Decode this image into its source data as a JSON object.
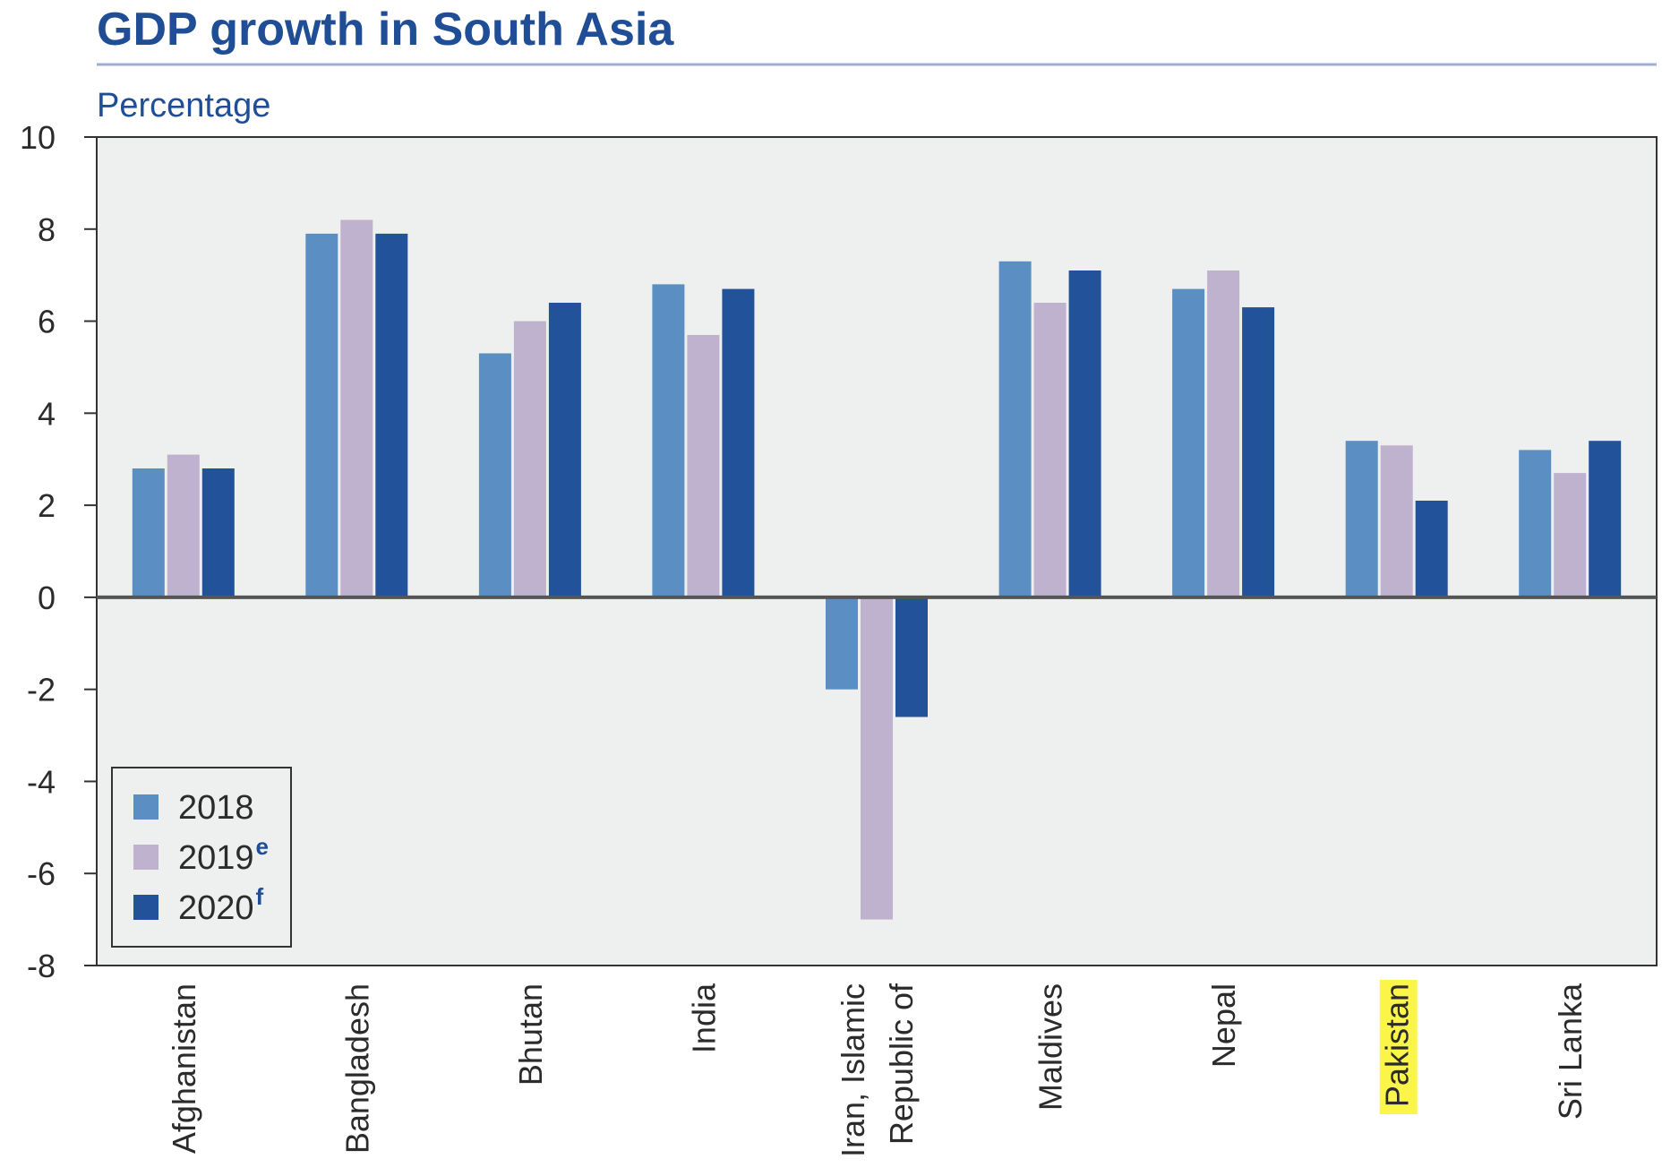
{
  "chart_data": {
    "type": "bar",
    "title": "GDP growth in South Asia",
    "ylabel": "Percentage",
    "xlabel": "",
    "ylim": [
      -8,
      10
    ],
    "yticks": [
      10,
      8,
      6,
      4,
      2,
      0,
      -2,
      -4,
      -6,
      -8
    ],
    "categories": [
      "Afghanistan",
      "Bangladesh",
      "Bhutan",
      "India",
      "Iran, Islamic Republic of",
      "Maldives",
      "Nepal",
      "Pakistan",
      "Sri Lanka"
    ],
    "category_label_lines": [
      [
        "Afghanistan"
      ],
      [
        "Bangladesh"
      ],
      [
        "Bhutan"
      ],
      [
        "India"
      ],
      [
        "Iran, Islamic",
        "Republic of"
      ],
      [
        "Maldives"
      ],
      [
        "Nepal"
      ],
      [
        "Pakistan"
      ],
      [
        "Sri Lanka"
      ]
    ],
    "highlighted_category": "Pakistan",
    "series": [
      {
        "name": "2018",
        "superscript": "",
        "color": "#5b8fc3",
        "values": [
          2.8,
          7.9,
          5.3,
          6.8,
          -2.0,
          7.3,
          6.7,
          3.4,
          3.2
        ]
      },
      {
        "name": "2019",
        "superscript": "e",
        "color": "#bfb2cf",
        "values": [
          3.1,
          8.2,
          6.0,
          5.7,
          -7.0,
          6.4,
          7.1,
          3.3,
          2.7
        ]
      },
      {
        "name": "2020",
        "superscript": "f",
        "color": "#22539a",
        "values": [
          2.8,
          7.9,
          6.4,
          6.7,
          -2.6,
          7.1,
          6.3,
          2.1,
          3.4
        ]
      }
    ],
    "grid": false,
    "legend_position": "bottom-left",
    "colors": {
      "title": "#1f4e96",
      "plot_background": "#eef0ef",
      "axis": "#333333",
      "zero_line": "#555555",
      "highlight": "#fbf54a",
      "title_rule": "#9eaed3"
    }
  }
}
